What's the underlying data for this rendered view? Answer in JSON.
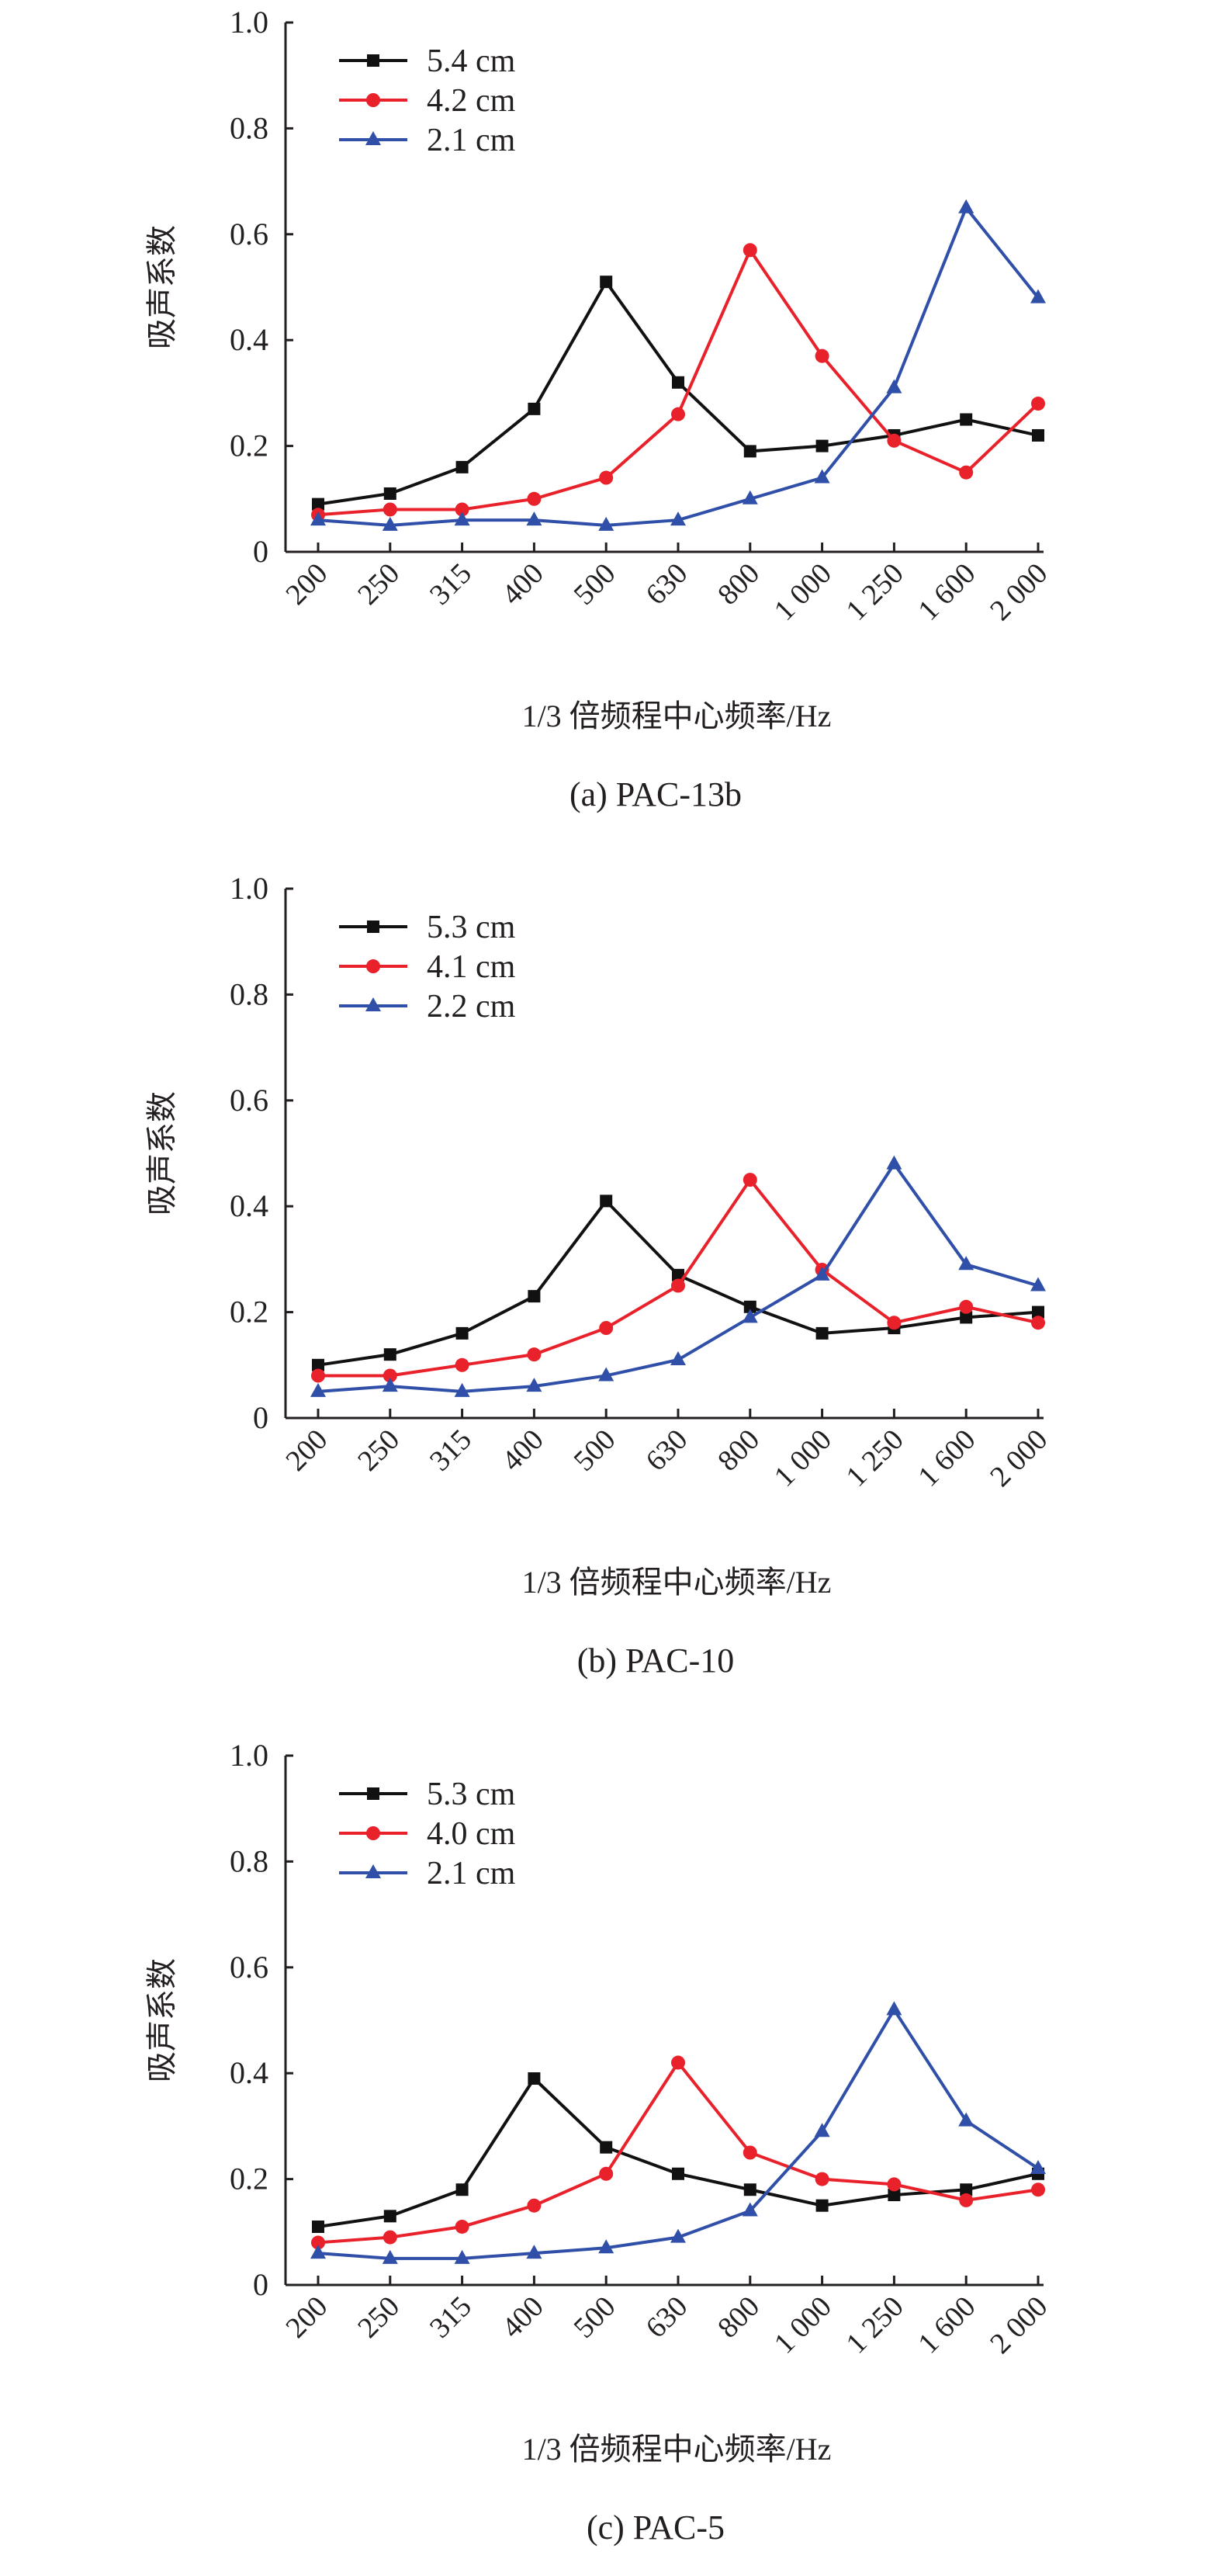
{
  "colors": {
    "series_1": "#111111",
    "series_2": "#e8212a",
    "series_3": "#2f4fa8",
    "axis": "#231f20"
  },
  "chart_data": [
    {
      "type": "line",
      "caption": "(a) PAC-13b",
      "xlabel": "1/3 倍频程中心频率/Hz",
      "ylabel": "吸声系数",
      "categories": [
        "200",
        "250",
        "315",
        "400",
        "500",
        "630",
        "800",
        "1 000",
        "1 250",
        "1 600",
        "2 000"
      ],
      "ylim": [
        0,
        1.0
      ],
      "yticks": [
        "0",
        "0.2",
        "0.4",
        "0.6",
        "0.8",
        "1.0"
      ],
      "legend_position": "top-left",
      "series": [
        {
          "name": "5.4 cm",
          "marker": "square",
          "values": [
            0.09,
            0.11,
            0.16,
            0.27,
            0.51,
            0.32,
            0.19,
            0.2,
            0.22,
            0.25,
            0.22
          ]
        },
        {
          "name": "4.2 cm",
          "marker": "circle",
          "values": [
            0.07,
            0.08,
            0.08,
            0.1,
            0.14,
            0.26,
            0.57,
            0.37,
            0.21,
            0.15,
            0.28
          ]
        },
        {
          "name": "2.1 cm",
          "marker": "triangle",
          "values": [
            0.06,
            0.05,
            0.06,
            0.06,
            0.05,
            0.06,
            0.1,
            0.14,
            0.31,
            0.65,
            0.48
          ]
        }
      ]
    },
    {
      "type": "line",
      "caption": "(b) PAC-10",
      "xlabel": "1/3 倍频程中心频率/Hz",
      "ylabel": "吸声系数",
      "categories": [
        "200",
        "250",
        "315",
        "400",
        "500",
        "630",
        "800",
        "1 000",
        "1 250",
        "1 600",
        "2 000"
      ],
      "ylim": [
        0,
        1.0
      ],
      "yticks": [
        "0",
        "0.2",
        "0.4",
        "0.6",
        "0.8",
        "1.0"
      ],
      "legend_position": "top-left",
      "series": [
        {
          "name": "5.3 cm",
          "marker": "square",
          "values": [
            0.1,
            0.12,
            0.16,
            0.23,
            0.41,
            0.27,
            0.21,
            0.16,
            0.17,
            0.19,
            0.2
          ]
        },
        {
          "name": "4.1 cm",
          "marker": "circle",
          "values": [
            0.08,
            0.08,
            0.1,
            0.12,
            0.17,
            0.25,
            0.45,
            0.28,
            0.18,
            0.21,
            0.18
          ]
        },
        {
          "name": "2.2 cm",
          "marker": "triangle",
          "values": [
            0.05,
            0.06,
            0.05,
            0.06,
            0.08,
            0.11,
            0.19,
            0.27,
            0.48,
            0.29,
            0.25
          ]
        }
      ]
    },
    {
      "type": "line",
      "caption": "(c) PAC-5",
      "xlabel": "1/3 倍频程中心频率/Hz",
      "ylabel": "吸声系数",
      "categories": [
        "200",
        "250",
        "315",
        "400",
        "500",
        "630",
        "800",
        "1 000",
        "1 250",
        "1 600",
        "2 000"
      ],
      "ylim": [
        0,
        1.0
      ],
      "yticks": [
        "0",
        "0.2",
        "0.4",
        "0.6",
        "0.8",
        "1.0"
      ],
      "legend_position": "top-left",
      "series": [
        {
          "name": "5.3 cm",
          "marker": "square",
          "values": [
            0.11,
            0.13,
            0.18,
            0.39,
            0.26,
            0.21,
            0.18,
            0.15,
            0.17,
            0.18,
            0.21
          ]
        },
        {
          "name": "4.0 cm",
          "marker": "circle",
          "values": [
            0.08,
            0.09,
            0.11,
            0.15,
            0.21,
            0.42,
            0.25,
            0.2,
            0.19,
            0.16,
            0.18
          ]
        },
        {
          "name": "2.1 cm",
          "marker": "triangle",
          "values": [
            0.06,
            0.05,
            0.05,
            0.06,
            0.07,
            0.09,
            0.14,
            0.29,
            0.52,
            0.31,
            0.22
          ]
        }
      ]
    }
  ]
}
